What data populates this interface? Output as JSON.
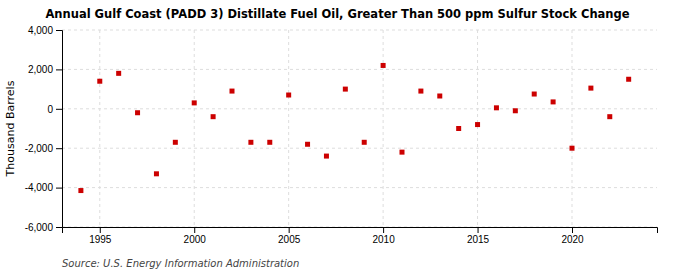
{
  "chart_data": {
    "type": "scatter",
    "title": "Annual Gulf Coast (PADD 3) Distillate Fuel Oil, Greater Than 500 ppm Sulfur Stock Change",
    "ylabel": "Thousand Barrels",
    "source": "Source: U.S. Energy Information Administration",
    "x": [
      1994,
      1995,
      1996,
      1997,
      1998,
      1999,
      2000,
      2001,
      2002,
      2003,
      2004,
      2005,
      2006,
      2007,
      2008,
      2009,
      2010,
      2011,
      2012,
      2013,
      2014,
      2015,
      2016,
      2017,
      2018,
      2019,
      2020,
      2021,
      2022,
      2023
    ],
    "values": [
      -4150,
      1400,
      1800,
      -200,
      -3300,
      -1700,
      300,
      -400,
      900,
      -1700,
      -1700,
      700,
      -1800,
      -2400,
      1000,
      -1700,
      2200,
      -2200,
      900,
      650,
      -1000,
      -800,
      50,
      -100,
      750,
      350,
      -2000,
      1050,
      -400,
      1500
    ],
    "color": "#cc0000",
    "marker": "square",
    "xlim": [
      1993.0,
      2024.5
    ],
    "xticks": [
      1995,
      2000,
      2005,
      2010,
      2015,
      2020
    ],
    "ylim": [
      -6000,
      4000
    ],
    "yticks": [
      {
        "value": -6000,
        "label": "-6,000"
      },
      {
        "value": -4000,
        "label": "-4,000"
      },
      {
        "value": -2000,
        "label": "-2,000"
      },
      0,
      {
        "value": 2000,
        "label": "2,000"
      },
      {
        "value": 4000,
        "label": "4,000"
      }
    ],
    "grid": true
  }
}
